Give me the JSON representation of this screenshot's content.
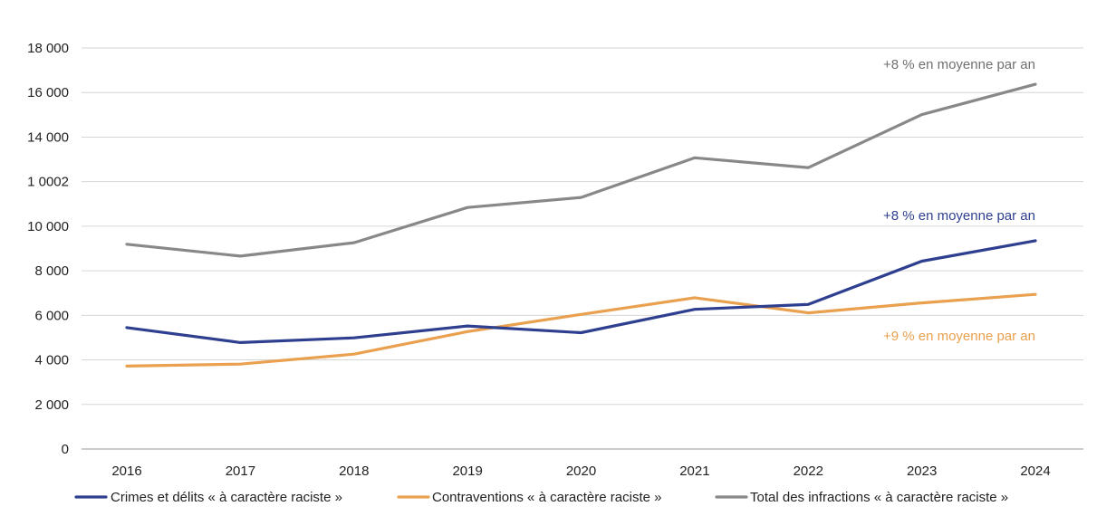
{
  "chart_data": {
    "type": "line",
    "categories": [
      "2016",
      "2017",
      "2018",
      "2019",
      "2020",
      "2021",
      "2022",
      "2023",
      "2024"
    ],
    "y_tick_labels": [
      "0",
      "2 000",
      "4 000",
      "6 000",
      "8 000",
      "10 000",
      "1 0002",
      "14 000",
      "16 000",
      "18 000"
    ],
    "ylim": [
      0,
      18000
    ],
    "grid": "horizontal",
    "legend_position": "bottom",
    "series": [
      {
        "name": "Crimes et délits « à caractère raciste »",
        "color": "#2e3f8f",
        "values": [
          5450,
          4780,
          4990,
          5520,
          5220,
          6270,
          6490,
          8430,
          9350
        ]
      },
      {
        "name": "Contraventions « à caractère raciste »",
        "color": "#e9a04f",
        "values": [
          3720,
          3810,
          4260,
          5270,
          6040,
          6790,
          6110,
          6560,
          6940
        ]
      },
      {
        "name": "Total des infractions « à caractère raciste »",
        "color": "#888888",
        "values": [
          9190,
          8660,
          9260,
          10840,
          11290,
          13070,
          12630,
          15010,
          16370
        ]
      }
    ],
    "annotations": [
      {
        "text": "+8 % en moyenne par an",
        "series": 2,
        "color": "#707070"
      },
      {
        "text": "+8 % en moyenne par an",
        "series": 0,
        "color": "#2e3f8f"
      },
      {
        "text": "+9 % en moyenne par an",
        "series": 1,
        "color": "#e9a04f"
      }
    ]
  }
}
